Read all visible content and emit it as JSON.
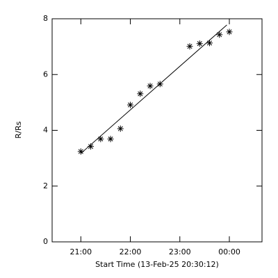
{
  "chart_data": {
    "type": "scatter",
    "x_label": "Start Time (13-Feb-25 20:30:12)",
    "y_label": "R/Rs",
    "x": [
      21.0,
      21.2,
      21.4,
      21.6,
      21.8,
      22.0,
      22.2,
      22.4,
      22.6,
      23.2,
      23.4,
      23.6,
      23.8,
      24.0
    ],
    "values": [
      3.24,
      3.42,
      3.69,
      3.69,
      4.06,
      4.91,
      5.31,
      5.59,
      5.66,
      7.01,
      7.11,
      7.13,
      7.43,
      7.53
    ],
    "fit": {
      "x": [
        21.0,
        23.95
      ],
      "values": [
        3.17,
        7.78
      ]
    },
    "color": "#000000",
    "xlim": [
      20.42,
      24.66
    ],
    "ylim": [
      0,
      8
    ],
    "xticks": [
      {
        "value": 21,
        "label": "21:00"
      },
      {
        "value": 22,
        "label": "22:00"
      },
      {
        "value": 23,
        "label": "23:00"
      },
      {
        "value": 24,
        "label": "00:00"
      }
    ],
    "yticks": [
      0,
      2,
      4,
      6,
      8
    ]
  }
}
